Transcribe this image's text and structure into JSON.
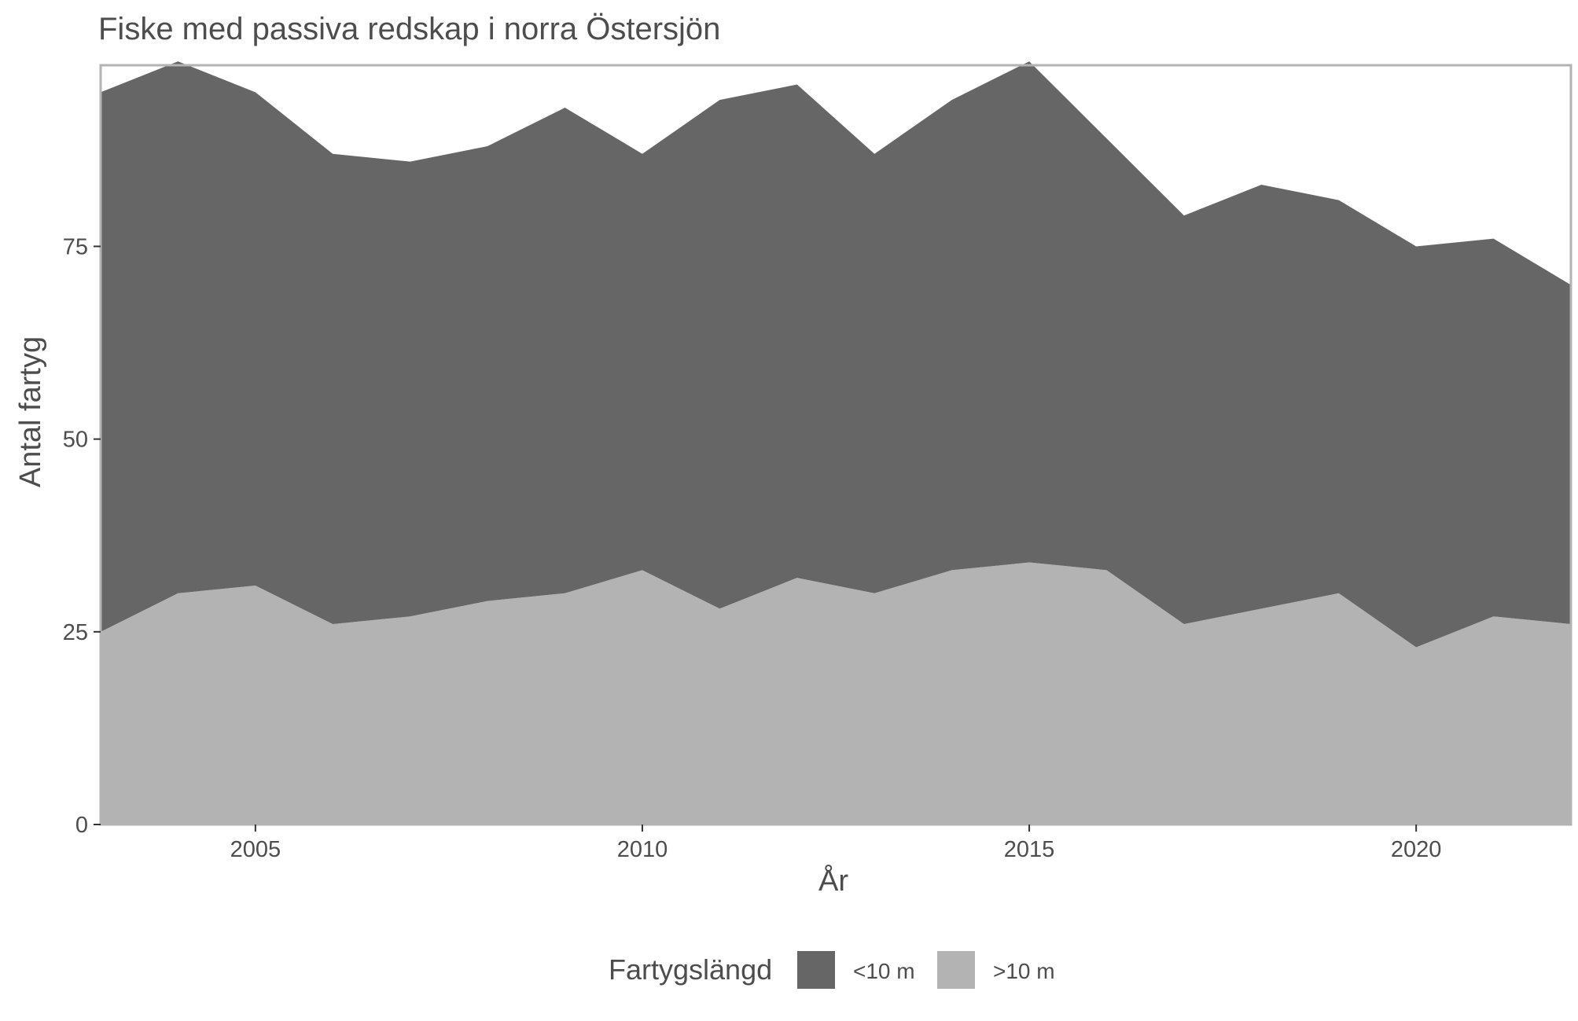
{
  "chart_data": {
    "type": "area",
    "stacked": true,
    "title": "Fiske med passiva redskap i norra Östersjön",
    "xlabel": "År",
    "ylabel": "Antal fartyg",
    "x": [
      2003,
      2004,
      2005,
      2006,
      2007,
      2008,
      2009,
      2010,
      2011,
      2012,
      2013,
      2014,
      2015,
      2016,
      2017,
      2018,
      2019,
      2020,
      2021,
      2022
    ],
    "xlim": [
      2003,
      2022
    ],
    "ylim": [
      0,
      98.5
    ],
    "x_ticks": [
      2005,
      2010,
      2015,
      2020
    ],
    "y_ticks": [
      0,
      25,
      50,
      75
    ],
    "grid": false,
    "legend": {
      "title": "Fartygslängd",
      "position": "bottom"
    },
    "series": [
      {
        "name": ">10 m",
        "color": "#b3b3b3",
        "values": [
          25,
          30,
          31,
          26,
          27,
          29,
          30,
          33,
          28,
          32,
          30,
          33,
          34,
          33,
          26,
          28,
          30,
          23,
          27,
          26
        ]
      },
      {
        "name": "<10 m",
        "color": "#666666",
        "values": [
          70,
          69,
          64,
          61,
          59,
          59,
          63,
          54,
          66,
          64,
          57,
          61,
          65,
          56,
          53,
          55,
          51,
          52,
          49,
          44
        ]
      }
    ],
    "legend_order": [
      "<10 m",
      ">10 m"
    ]
  }
}
